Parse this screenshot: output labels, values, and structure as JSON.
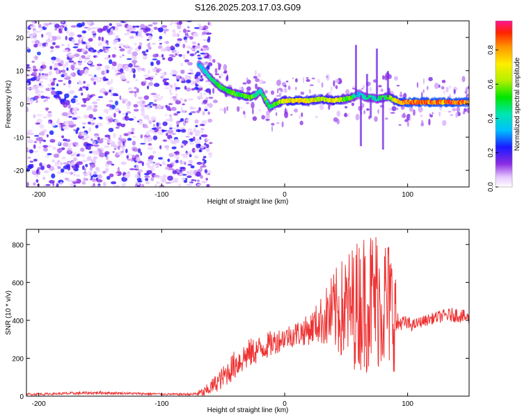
{
  "title": "S126.2025.203.17.03.G09",
  "chart_data": [
    {
      "type": "heatmap",
      "xlabel": "Height of straight line (km)",
      "ylabel": "Frequency (Hz)",
      "xlim": [
        -210,
        150
      ],
      "ylim": [
        -25,
        25
      ],
      "xticks": [
        -200,
        -100,
        0,
        100
      ],
      "yticks": [
        -20,
        -10,
        0,
        10,
        20
      ],
      "colorbar": {
        "label": "Normalized spectral amplitude",
        "range": [
          0,
          0.97
        ],
        "ticks": [
          0.0,
          0.2,
          0.4,
          0.6,
          0.8
        ]
      },
      "noise_region": {
        "x": [
          -210,
          -60
        ],
        "y": [
          -25,
          25
        ]
      },
      "ridge": {
        "x": [
          -70,
          -63,
          -58,
          -52,
          -47,
          -40,
          -35,
          -28,
          -24,
          -20,
          -16,
          -12,
          -8,
          -4,
          0,
          5,
          10,
          20,
          30,
          40,
          50,
          55,
          60,
          65,
          70,
          75,
          80,
          85,
          90,
          95,
          100,
          110,
          120,
          130,
          140,
          150
        ],
        "freq": [
          12,
          9,
          7,
          5,
          4,
          3,
          2.5,
          2,
          2.5,
          4,
          1.5,
          -1,
          0,
          0.5,
          1,
          1,
          1,
          1,
          1.5,
          1,
          1.5,
          2,
          3,
          2,
          2,
          1.5,
          2,
          2,
          1,
          0.5,
          0.5,
          0.5,
          0.5,
          0.5,
          0.5,
          0.5
        ],
        "amplitude": [
          0.35,
          0.45,
          0.5,
          0.55,
          0.6,
          0.55,
          0.6,
          0.65,
          0.5,
          0.45,
          0.55,
          0.5,
          0.6,
          0.65,
          0.7,
          0.75,
          0.8,
          0.75,
          0.7,
          0.75,
          0.6,
          0.55,
          0.4,
          0.45,
          0.5,
          0.45,
          0.55,
          0.6,
          0.8,
          0.85,
          0.9,
          0.9,
          0.9,
          0.9,
          0.9,
          0.9
        ]
      }
    },
    {
      "type": "line",
      "xlabel": "Height of straight line (km)",
      "ylabel": "SNR (10 * v/v)",
      "xlim": [
        -210,
        150
      ],
      "ylim": [
        0,
        880
      ],
      "xticks": [
        -200,
        -100,
        0,
        100
      ],
      "yticks": [
        0,
        200,
        400,
        600,
        800
      ],
      "series": [
        {
          "color": "#ee3333",
          "x": [
            -210,
            -190,
            -170,
            -150,
            -130,
            -110,
            -90,
            -75,
            -65,
            -50,
            -40,
            -30,
            -20,
            -10,
            0,
            10,
            20,
            25,
            30,
            35,
            40,
            45,
            50,
            55,
            60,
            65,
            70,
            75,
            80,
            85,
            90,
            92,
            95,
            100,
            105,
            110,
            120,
            130,
            140,
            150
          ],
          "y": [
            10,
            12,
            15,
            18,
            15,
            12,
            10,
            10,
            20,
            100,
            170,
            220,
            250,
            280,
            310,
            330,
            350,
            380,
            400,
            420,
            440,
            450,
            460,
            470,
            490,
            500,
            510,
            520,
            500,
            480,
            430,
            380,
            390,
            380,
            375,
            390,
            410,
            425,
            430,
            410
          ],
          "spread": [
            6,
            6,
            8,
            8,
            6,
            6,
            5,
            6,
            30,
            60,
            80,
            80,
            70,
            70,
            60,
            70,
            80,
            100,
            130,
            180,
            220,
            260,
            300,
            330,
            350,
            380,
            390,
            380,
            380,
            360,
            300,
            60,
            40,
            40,
            30,
            30,
            30,
            35,
            40,
            35
          ]
        }
      ]
    }
  ]
}
